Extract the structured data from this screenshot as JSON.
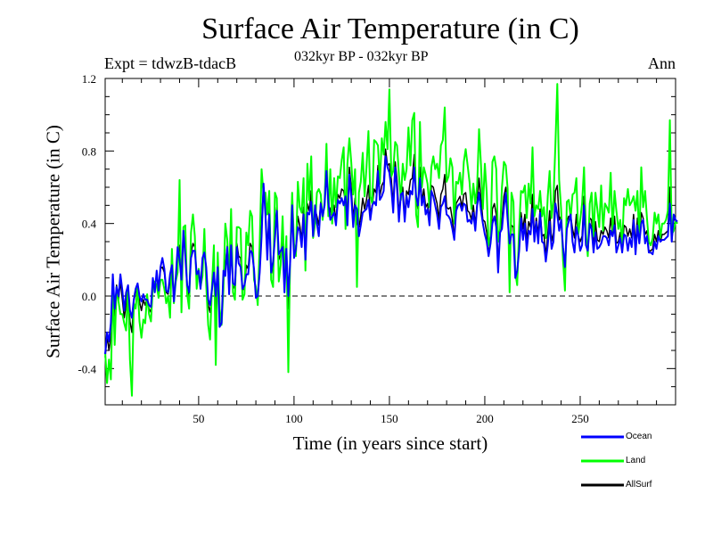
{
  "chart_data": {
    "type": "line",
    "title": "Surface Air Temperature (in C)",
    "subtitle": "032kyr BP - 032kyr BP",
    "expt_label": "Expt = tdwzB-tdacB",
    "period_label": "Ann",
    "xlabel": "Time (in years since start)",
    "ylabel": "Surface Air Temperature (in C)",
    "xlim": [
      1,
      300
    ],
    "ylim": [
      -0.6,
      1.2
    ],
    "xticks": [
      50,
      100,
      150,
      200,
      250
    ],
    "yticks": [
      -0.4,
      0.0,
      0.4,
      0.8,
      1.2
    ],
    "ytick_labels": [
      "-0.4",
      "0.0",
      "0.4",
      "0.8",
      "1.2"
    ],
    "reference_line": 0.0,
    "series": [
      {
        "name": "AllSurf",
        "color": "#000000",
        "values": [
          -0.34,
          -0.22,
          -0.3,
          -0.22,
          0.12,
          -0.11,
          0.06,
          -0.02,
          0.08,
          -0.02,
          -0.12,
          -0.05,
          0.05,
          -0.14,
          -0.2,
          -0.03,
          0.02,
          0.06,
          -0.03,
          -0.08,
          -0.02,
          -0.05,
          -0.01,
          -0.07,
          -0.09,
          0.09,
          0.02,
          0.13,
          0.02,
          0.15,
          0.16,
          0.13,
          0.02,
          0.01,
          0.08,
          0.19,
          -0.03,
          0.1,
          0.24,
          0.28,
          0.05,
          0.36,
          0.25,
          0.05,
          0.0,
          0.24,
          0.29,
          0.27,
          0.1,
          0.14,
          0.04,
          0.19,
          0.26,
          0.14,
          -0.05,
          -0.09,
          0.04,
          0.16,
          -0.07,
          0.17,
          -0.15,
          -0.15,
          0.12,
          0.17,
          0.28,
          0.03,
          0.32,
          0.06,
          0.04,
          0.29,
          0.22,
          0.21,
          0.03,
          0.05,
          0.17,
          0.15,
          0.29,
          0.27,
          0.14,
          0.0,
          -0.01,
          0.16,
          0.41,
          0.6,
          0.48,
          0.25,
          0.48,
          0.12,
          0.16,
          0.37,
          0.49,
          0.2,
          0.23,
          0.31,
          0.04,
          0.27,
          -0.07,
          0.2,
          0.52,
          0.23,
          0.25,
          0.44,
          0.39,
          0.31,
          0.49,
          0.19,
          0.51,
          0.47,
          0.58,
          0.32,
          0.48,
          0.44,
          0.39,
          0.52,
          0.44,
          0.51,
          0.72,
          0.5,
          0.48,
          0.43,
          0.5,
          0.41,
          0.56,
          0.54,
          0.59,
          0.58,
          0.52,
          0.46,
          0.71,
          0.6,
          0.42,
          0.54,
          0.4,
          0.38,
          0.44,
          0.54,
          0.48,
          0.53,
          0.61,
          0.45,
          0.5,
          0.59,
          0.57,
          0.72,
          0.55,
          0.61,
          0.63,
          0.81,
          0.72,
          0.73,
          0.64,
          0.5,
          0.74,
          0.64,
          0.46,
          0.55,
          0.6,
          0.44,
          0.58,
          0.56,
          0.64,
          0.65,
          0.78,
          0.53,
          0.48,
          0.71,
          0.52,
          0.59,
          0.49,
          0.51,
          0.41,
          0.61,
          0.6,
          0.55,
          0.51,
          0.42,
          0.56,
          0.59,
          0.67,
          0.49,
          0.48,
          0.49,
          0.42,
          0.32,
          0.51,
          0.53,
          0.55,
          0.49,
          0.56,
          0.57,
          0.47,
          0.46,
          0.42,
          0.5,
          0.39,
          0.52,
          0.65,
          0.53,
          0.42,
          0.41,
          0.35,
          0.23,
          0.3,
          0.48,
          0.51,
          0.45,
          0.17,
          0.35,
          0.42,
          0.55,
          0.6,
          0.46,
          0.23,
          0.39,
          0.38,
          0.11,
          0.12,
          0.28,
          0.46,
          0.37,
          0.45,
          0.3,
          0.41,
          0.38,
          0.56,
          0.33,
          0.43,
          0.34,
          0.48,
          0.33,
          0.34,
          0.22,
          0.34,
          0.47,
          0.3,
          0.35,
          0.58,
          0.61,
          0.42,
          0.44,
          0.25,
          0.12,
          0.41,
          0.44,
          0.44,
          0.37,
          0.32,
          0.45,
          0.33,
          0.3,
          0.33,
          0.55,
          0.29,
          0.24,
          0.43,
          0.42,
          0.26,
          0.41,
          0.31,
          0.3,
          0.36,
          0.34,
          0.38,
          0.36,
          0.32,
          0.43,
          0.34,
          0.44,
          0.29,
          0.3,
          0.35,
          0.25,
          0.39,
          0.38,
          0.33,
          0.37,
          0.32,
          0.45,
          0.28,
          0.43,
          0.29,
          0.46,
          0.43,
          0.34,
          0.36,
          0.25,
          0.25,
          0.26,
          0.34,
          0.3,
          0.36,
          0.3,
          0.34,
          0.34,
          0.35,
          0.36,
          0.6,
          0.3,
          0.42,
          0.42,
          0.4
        ]
      },
      {
        "name": "Land",
        "color": "#00ff00",
        "values": [
          -0.31,
          -0.48,
          -0.35,
          -0.46,
          0.05,
          -0.27,
          0.05,
          -0.03,
          -0.1,
          -0.1,
          -0.15,
          -0.19,
          0.05,
          -0.35,
          -0.55,
          -0.04,
          -0.07,
          0.05,
          -0.14,
          -0.23,
          -0.13,
          -0.15,
          0.01,
          -0.1,
          -0.14,
          0.05,
          0.08,
          0.06,
          -0.01,
          0.09,
          0.09,
          0.04,
          -0.04,
          0.0,
          -0.12,
          0.26,
          -0.04,
          0.08,
          0.13,
          0.64,
          -0.09,
          0.38,
          0.39,
          0.01,
          -0.07,
          0.35,
          0.45,
          0.33,
          0.04,
          0.15,
          0.05,
          0.11,
          0.37,
          0.06,
          -0.16,
          -0.24,
          0.06,
          0.28,
          -0.38,
          0.24,
          -0.07,
          -0.16,
          0.04,
          0.4,
          0.31,
          0.1,
          0.48,
          0.02,
          -0.02,
          0.38,
          0.38,
          0.37,
          -0.02,
          0.01,
          0.35,
          0.28,
          0.47,
          0.44,
          0.09,
          0.05,
          -0.05,
          0.3,
          0.7,
          0.56,
          0.57,
          0.45,
          0.58,
          0.09,
          0.05,
          0.57,
          0.54,
          0.08,
          0.17,
          0.44,
          0.1,
          0.33,
          -0.42,
          0.23,
          0.57,
          0.29,
          0.22,
          0.63,
          0.49,
          0.46,
          0.65,
          0.14,
          0.73,
          0.53,
          0.77,
          0.32,
          0.4,
          0.57,
          0.59,
          0.56,
          0.42,
          0.52,
          0.84,
          0.44,
          0.7,
          0.4,
          0.65,
          0.49,
          0.66,
          0.65,
          0.75,
          0.82,
          0.37,
          0.73,
          0.87,
          0.74,
          0.56,
          0.7,
          0.05,
          0.57,
          0.63,
          0.79,
          0.55,
          0.71,
          0.91,
          0.55,
          0.51,
          0.86,
          0.85,
          0.83,
          0.62,
          0.87,
          0.78,
          0.96,
          0.81,
          1.14,
          0.66,
          0.69,
          0.85,
          0.83,
          0.67,
          0.53,
          0.73,
          0.64,
          0.7,
          0.93,
          0.72,
          0.97,
          1.01,
          0.45,
          0.38,
          0.96,
          0.6,
          0.71,
          0.67,
          0.62,
          0.49,
          0.71,
          0.77,
          0.7,
          0.73,
          0.65,
          0.83,
          0.86,
          1.04,
          0.63,
          0.66,
          0.76,
          0.71,
          0.4,
          0.63,
          0.62,
          0.68,
          0.56,
          0.74,
          0.81,
          0.72,
          0.63,
          0.48,
          0.62,
          0.51,
          0.61,
          0.92,
          0.72,
          0.48,
          0.73,
          0.57,
          0.28,
          0.33,
          0.74,
          0.77,
          0.7,
          0.3,
          0.37,
          0.6,
          0.74,
          0.72,
          0.59,
          0.02,
          0.57,
          0.52,
          0.13,
          0.06,
          0.38,
          0.58,
          0.57,
          0.61,
          0.43,
          0.62,
          0.51,
          0.82,
          0.44,
          0.5,
          0.48,
          0.58,
          0.44,
          0.49,
          0.32,
          0.55,
          0.69,
          0.43,
          0.53,
          0.84,
          1.17,
          0.64,
          0.48,
          0.2,
          0.03,
          0.52,
          0.53,
          0.43,
          0.56,
          0.57,
          0.65,
          0.34,
          0.42,
          0.51,
          0.71,
          0.35,
          0.22,
          0.51,
          0.57,
          0.33,
          0.57,
          0.48,
          0.38,
          0.61,
          0.36,
          0.51,
          0.49,
          0.46,
          0.68,
          0.36,
          0.58,
          0.47,
          0.37,
          0.42,
          0.28,
          0.54,
          0.5,
          0.59,
          0.5,
          0.52,
          0.55,
          0.47,
          0.58,
          0.3,
          0.71,
          0.49,
          0.58,
          0.43,
          0.3,
          0.28,
          0.32,
          0.46,
          0.4,
          0.45,
          0.32,
          0.4,
          0.4,
          0.42,
          0.47,
          0.97,
          0.34,
          0.36,
          0.41,
          0.4
        ]
      },
      {
        "name": "Ocean",
        "color": "#0000ff",
        "values": [
          -0.32,
          -0.2,
          -0.25,
          -0.15,
          0.12,
          -0.07,
          0.05,
          0.0,
          0.12,
          0.03,
          -0.08,
          0.02,
          0.06,
          -0.08,
          -0.12,
          -0.02,
          0.04,
          0.07,
          0.0,
          -0.03,
          0.01,
          -0.02,
          -0.02,
          -0.05,
          -0.06,
          0.1,
          0.02,
          0.14,
          0.03,
          0.16,
          0.21,
          0.15,
          0.03,
          0.02,
          0.12,
          0.17,
          -0.03,
          0.1,
          0.27,
          0.2,
          0.09,
          0.36,
          0.22,
          0.06,
          0.02,
          0.21,
          0.25,
          0.25,
          0.12,
          0.14,
          0.04,
          0.21,
          0.24,
          0.16,
          -0.02,
          -0.05,
          0.04,
          0.13,
          0.0,
          0.16,
          -0.17,
          -0.15,
          0.14,
          0.11,
          0.27,
          0.01,
          0.28,
          0.07,
          0.06,
          0.27,
          0.18,
          0.16,
          0.04,
          0.06,
          0.12,
          0.12,
          0.25,
          0.24,
          0.15,
          -0.01,
          0.0,
          0.13,
          0.33,
          0.62,
          0.45,
          0.2,
          0.45,
          0.13,
          0.19,
          0.32,
          0.47,
          0.23,
          0.25,
          0.27,
          0.02,
          0.26,
          0.0,
          0.19,
          0.5,
          0.21,
          0.26,
          0.38,
          0.36,
          0.27,
          0.45,
          0.2,
          0.46,
          0.45,
          0.52,
          0.33,
          0.5,
          0.4,
          0.33,
          0.51,
          0.44,
          0.5,
          0.69,
          0.52,
          0.42,
          0.44,
          0.46,
          0.39,
          0.53,
          0.51,
          0.54,
          0.5,
          0.55,
          0.39,
          0.67,
          0.55,
          0.38,
          0.5,
          0.48,
          0.33,
          0.39,
          0.46,
          0.47,
          0.48,
          0.53,
          0.42,
          0.5,
          0.52,
          0.5,
          0.69,
          0.53,
          0.55,
          0.58,
          0.77,
          0.71,
          0.68,
          0.59,
          0.46,
          0.71,
          0.59,
          0.41,
          0.56,
          0.57,
          0.41,
          0.55,
          0.49,
          0.58,
          0.56,
          0.71,
          0.55,
          0.5,
          0.65,
          0.5,
          0.55,
          0.45,
          0.48,
          0.39,
          0.58,
          0.55,
          0.5,
          0.45,
          0.37,
          0.49,
          0.51,
          0.55,
          0.45,
          0.44,
          0.42,
          0.37,
          0.31,
          0.47,
          0.5,
          0.51,
          0.47,
          0.51,
          0.5,
          0.41,
          0.42,
          0.4,
          0.46,
          0.36,
          0.5,
          0.57,
          0.47,
          0.4,
          0.34,
          0.3,
          0.22,
          0.29,
          0.4,
          0.44,
          0.38,
          0.13,
          0.35,
          0.37,
          0.49,
          0.57,
          0.42,
          0.29,
          0.34,
          0.34,
          0.1,
          0.14,
          0.25,
          0.43,
          0.31,
          0.4,
          0.25,
          0.36,
          0.34,
          0.48,
          0.3,
          0.41,
          0.29,
          0.46,
          0.3,
          0.29,
          0.19,
          0.28,
          0.41,
          0.26,
          0.3,
          0.51,
          0.45,
          0.36,
          0.42,
          0.27,
          0.16,
          0.37,
          0.41,
          0.45,
          0.3,
          0.24,
          0.38,
          0.33,
          0.25,
          0.28,
          0.5,
          0.28,
          0.25,
          0.4,
          0.37,
          0.24,
          0.35,
          0.26,
          0.27,
          0.29,
          0.33,
          0.33,
          0.32,
          0.28,
          0.36,
          0.33,
          0.39,
          0.24,
          0.28,
          0.32,
          0.24,
          0.34,
          0.33,
          0.25,
          0.32,
          0.27,
          0.42,
          0.23,
          0.39,
          0.29,
          0.4,
          0.42,
          0.29,
          0.33,
          0.24,
          0.24,
          0.23,
          0.3,
          0.26,
          0.33,
          0.3,
          0.31,
          0.31,
          0.32,
          0.33,
          0.51,
          0.3,
          0.45,
          0.42,
          0.41
        ]
      }
    ],
    "legend": [
      {
        "label": "Ocean",
        "color": "#0000ff"
      },
      {
        "label": "Land",
        "color": "#00ff00"
      },
      {
        "label": "AllSurf",
        "color": "#000000"
      }
    ]
  }
}
